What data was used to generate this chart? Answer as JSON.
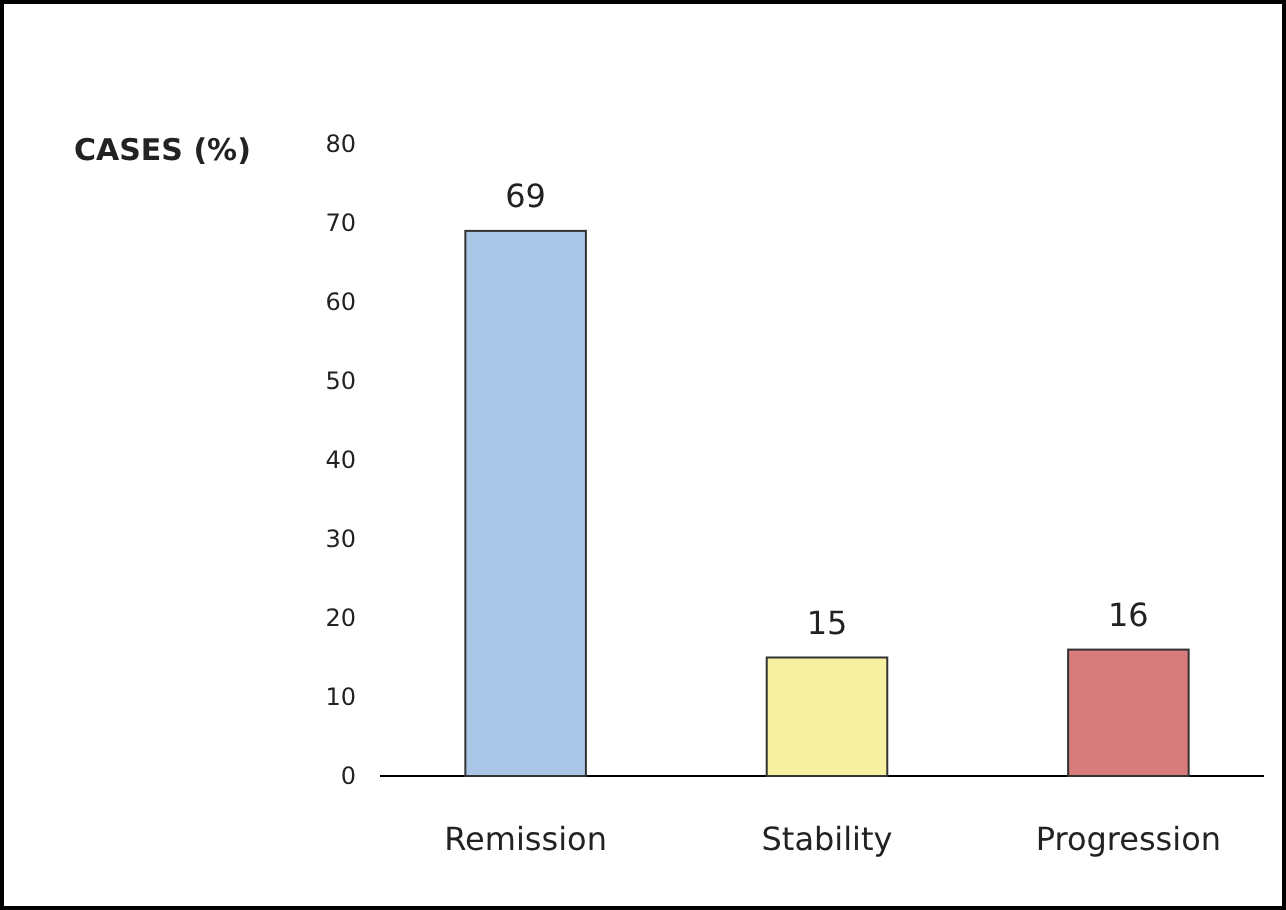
{
  "chart_data": {
    "type": "bar",
    "ylabel": "CASES (%)",
    "categories": [
      "Remission",
      "Stability",
      "Progression"
    ],
    "values": [
      69,
      15,
      16
    ],
    "colors": [
      "#a9c6e6",
      "#f6f0a0",
      "#d87b7b"
    ],
    "ylim": [
      0,
      80
    ],
    "yticks": [
      0,
      10,
      20,
      30,
      40,
      50,
      60,
      70,
      80
    ],
    "data_labels": true,
    "grid": false
  }
}
